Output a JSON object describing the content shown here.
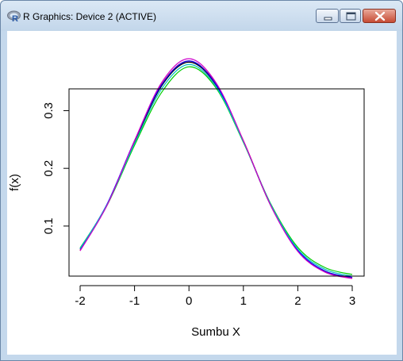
{
  "window": {
    "title": "R Graphics: Device 2 (ACTIVE)",
    "icons": {
      "app": "r-logo-icon",
      "minimize": "minimize-icon",
      "maximize": "maximize-icon",
      "close": "close-icon"
    },
    "colors": {
      "close_button": "#c74b34",
      "frame": "#c4d8ec"
    }
  },
  "chart_data": {
    "type": "line",
    "title": "",
    "xlabel": "Sumbu X",
    "ylabel": "f(x)",
    "xlim": [
      -2,
      3
    ],
    "ylim": [
      0.06,
      0.39
    ],
    "x_ticks": [
      -2,
      -1,
      0,
      1,
      2,
      3
    ],
    "y_ticks": [
      0.1,
      0.2,
      0.3
    ],
    "x_tick_labels": [
      "-2",
      "-1",
      "0",
      "1",
      "2",
      "3"
    ],
    "y_tick_labels": [
      "0.1",
      "0.2",
      "0.3"
    ],
    "grid": false,
    "legend": "none",
    "x": [
      -2.0,
      -1.5,
      -1.0,
      -0.5,
      0.0,
      0.5,
      1.0,
      1.5,
      2.0,
      2.5,
      3.0
    ],
    "series": [
      {
        "color": "#000000",
        "values": [
          0.058,
          0.137,
          0.245,
          0.343,
          0.384,
          0.344,
          0.247,
          0.136,
          0.057,
          0.022,
          0.01
        ]
      },
      {
        "color": "#ff0000",
        "values": [
          0.058,
          0.138,
          0.247,
          0.346,
          0.386,
          0.346,
          0.248,
          0.137,
          0.057,
          0.021,
          0.01
        ]
      },
      {
        "color": "#00cd00",
        "values": [
          0.062,
          0.137,
          0.24,
          0.332,
          0.376,
          0.339,
          0.245,
          0.139,
          0.063,
          0.028,
          0.016
        ]
      },
      {
        "color": "#0000ff",
        "values": [
          0.06,
          0.139,
          0.248,
          0.345,
          0.386,
          0.345,
          0.247,
          0.137,
          0.058,
          0.022,
          0.011
        ]
      },
      {
        "color": "#00bfbf",
        "values": [
          0.061,
          0.138,
          0.243,
          0.338,
          0.38,
          0.341,
          0.246,
          0.138,
          0.06,
          0.025,
          0.013
        ]
      },
      {
        "color": "#cd00cd",
        "values": [
          0.057,
          0.137,
          0.248,
          0.349,
          0.39,
          0.348,
          0.248,
          0.136,
          0.056,
          0.02,
          0.009
        ]
      }
    ]
  }
}
